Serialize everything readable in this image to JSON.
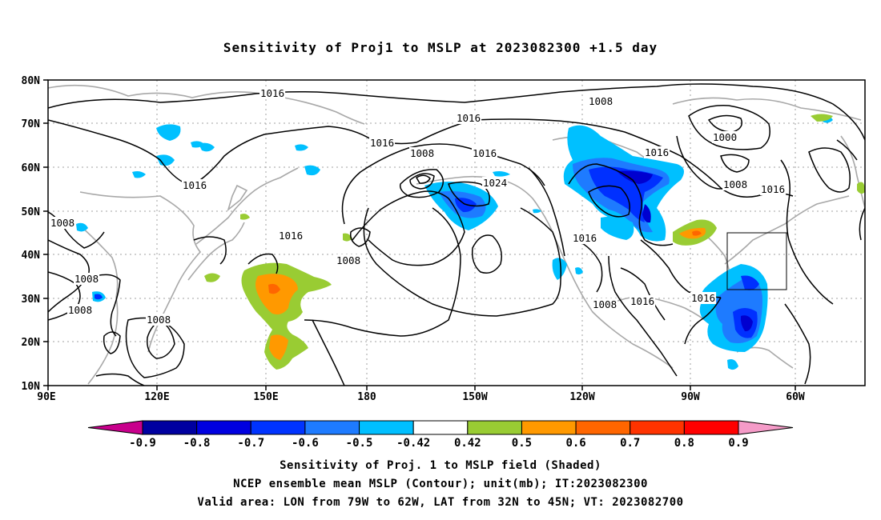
{
  "title": "Sensitivity of Proj1 to MSLP at 2023082300 +1.5 day",
  "map": {
    "lat_labels": [
      "80N",
      "70N",
      "60N",
      "50N",
      "40N",
      "30N",
      "20N",
      "10N"
    ],
    "lon_labels": [
      "90E",
      "120E",
      "150E",
      "180",
      "150W",
      "120W",
      "90W",
      "60W"
    ],
    "contour_labels": [
      "1016",
      "1008",
      "1016",
      "1016",
      "1008",
      "1016",
      "1016",
      "1024",
      "1000",
      "1008",
      "1016",
      "1016",
      "1008",
      "1016",
      "1008",
      "1008",
      "1008",
      "1016",
      "1008",
      "1016",
      "1016",
      "1008"
    ],
    "colors": {
      "contour": "#000000",
      "coastline": "#a8a8a8",
      "grid": "#a0a0a0",
      "neg_strong": "#0000d0",
      "neg_mid": "#0030ff",
      "neg_light": "#1e7bff",
      "neg_pale": "#00c0ff",
      "pos_green": "#99cc33",
      "pos_orange": "#ff9900",
      "pos_dark_orange": "#ff6600"
    }
  },
  "colorbar": {
    "ticks": [
      "-0.9",
      "-0.8",
      "-0.7",
      "-0.6",
      "-0.5",
      "-0.42",
      "0.42",
      "0.5",
      "0.6",
      "0.7",
      "0.8",
      "0.9"
    ],
    "colors": [
      "#c8008c",
      "#0000a0",
      "#0000e0",
      "#0033ff",
      "#1e7bff",
      "#00bfff",
      "#ffffff",
      "#99cc33",
      "#ff9900",
      "#ff6600",
      "#ff3300",
      "#ff0000",
      "#f59bc8"
    ]
  },
  "captions": [
    "Sensitivity of Proj. 1 to MSLP field (Shaded)",
    "NCEP ensemble mean MSLP (Contour); unit(mb); IT:2023082300",
    "Valid area: LON from 79W to 62W, LAT from 32N to 45N; VT: 2023082700"
  ]
}
